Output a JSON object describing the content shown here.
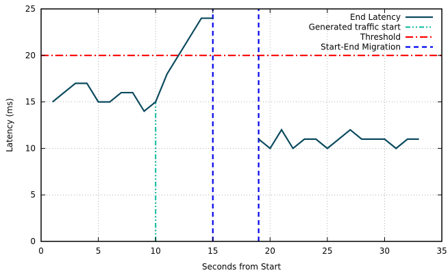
{
  "chart_data": {
    "type": "line",
    "title": "",
    "xlabel": "Seconds from Start",
    "ylabel": "Latency (ms)",
    "xlim": [
      0,
      35
    ],
    "ylim": [
      0,
      25
    ],
    "x_ticks": [
      0,
      5,
      10,
      15,
      20,
      25,
      30,
      35
    ],
    "y_ticks": [
      0,
      5,
      10,
      15,
      20,
      25
    ],
    "grid": true,
    "legend_position": "top-right",
    "series": [
      {
        "name": "End Latency",
        "color": "#0b4a5e",
        "style": "solid",
        "segments": [
          [
            [
              1,
              15
            ],
            [
              2,
              16
            ],
            [
              3,
              17
            ],
            [
              4,
              17
            ],
            [
              5,
              15
            ],
            [
              6,
              15
            ],
            [
              7,
              16
            ],
            [
              8,
              16
            ],
            [
              9,
              14
            ],
            [
              10,
              15
            ],
            [
              11,
              18
            ],
            [
              12,
              20
            ],
            [
              13,
              22
            ],
            [
              14,
              24
            ],
            [
              15,
              24
            ]
          ],
          [
            [
              19,
              11
            ],
            [
              20,
              10
            ],
            [
              21,
              12
            ],
            [
              22,
              10
            ],
            [
              23,
              11
            ],
            [
              24,
              11
            ],
            [
              25,
              10
            ],
            [
              26,
              11
            ],
            [
              27,
              12
            ],
            [
              28,
              11
            ],
            [
              29,
              11
            ],
            [
              30,
              11
            ],
            [
              31,
              10
            ],
            [
              32,
              11
            ],
            [
              33,
              11
            ]
          ]
        ]
      }
    ],
    "reference_lines": [
      {
        "name": "Generated traffic start",
        "orientation": "vertical",
        "color": "#1fbfa5",
        "style": "dash-dot-dot",
        "x": 10,
        "y_range": [
          0,
          15
        ]
      },
      {
        "name": "Threshold",
        "orientation": "horizontal",
        "color": "#ff0000",
        "style": "dash-dot",
        "y": 20
      },
      {
        "name": "Start-End Migration",
        "orientation": "vertical",
        "color": "#0000ee",
        "style": "dashed",
        "x": [
          15,
          19
        ]
      }
    ]
  }
}
